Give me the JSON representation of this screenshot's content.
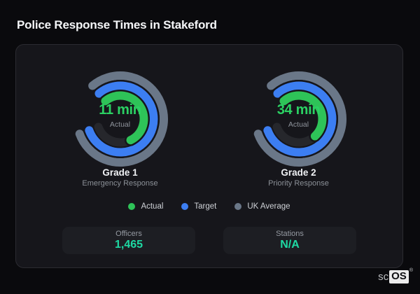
{
  "title": "Police Response Times in Stakeford",
  "colors": {
    "page_bg": "#0a0a0d",
    "card_bg": "#16161b",
    "card_border": "#2b2b31",
    "actual": "#2ec358",
    "actual_text": "#2bd163",
    "target": "#3c7ef2",
    "uk_average": "#6a7788",
    "track": "#26272c",
    "stat_value": "#1ed9a3"
  },
  "chart_data": {
    "type": "radial-gauge",
    "arc": {
      "start_deg": 320,
      "span_deg": 290
    },
    "rings_order_outer_to_inner": [
      "UK Average",
      "Target",
      "Actual"
    ],
    "legend_position": "bottom-center",
    "gauges": [
      {
        "label": "Grade 1",
        "sublabel": "Emergency Response",
        "value_text": "11 min",
        "value_caption": "Actual",
        "rings": {
          "actual_fraction": 0.67,
          "target_fraction": 1.0,
          "uk_average_fraction": 1.0
        }
      },
      {
        "label": "Grade 2",
        "sublabel": "Priority Response",
        "value_text": "34 min",
        "value_caption": "Actual",
        "rings": {
          "actual_fraction": 0.61,
          "target_fraction": 1.0,
          "uk_average_fraction": 1.0
        }
      }
    ]
  },
  "legend": {
    "items": [
      {
        "label": "Actual",
        "color": "#2ec358"
      },
      {
        "label": "Target",
        "color": "#3c7ef2"
      },
      {
        "label": "UK Average",
        "color": "#6a7788"
      }
    ]
  },
  "stats": [
    {
      "label": "Officers",
      "value": "1,465"
    },
    {
      "label": "Stations",
      "value": "N/A"
    }
  ],
  "watermark": {
    "prefix": "sc",
    "suffix": "OS",
    "reg": "®"
  }
}
